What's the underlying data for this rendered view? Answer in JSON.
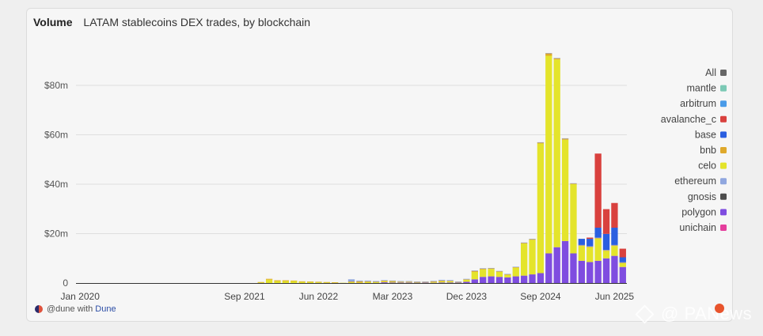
{
  "header": {
    "label": "Volume",
    "title": "LATAM stablecoins DEX trades, by blockchain"
  },
  "footer": {
    "credit": "@dune with",
    "brand": "Dune"
  },
  "watermark": {
    "text": "@ PANews"
  },
  "colors": {
    "mantle": "#7cc9b5",
    "arbitrum": "#4a9be8",
    "avalanche_c": "#d9413e",
    "base": "#2b5fe0",
    "bnb": "#dfa92c",
    "celo": "#e4e42b",
    "ethereum": "#90a7df",
    "gnosis": "#4d4d4d",
    "polygon": "#7f4de0",
    "unichain": "#e53e9d",
    "All": "#666666"
  },
  "chart_data": {
    "type": "bar",
    "stacked": true,
    "ylabel": "",
    "ylim": [
      0,
      100
    ],
    "yticks": [
      "0",
      "$20m",
      "$40m",
      "$60m",
      "$80m"
    ],
    "ytick_values": [
      0,
      20,
      40,
      60,
      80
    ],
    "xticks": [
      "Jan 2020",
      "Sep 2021",
      "Jun 2022",
      "Mar 2023",
      "Dec 2023",
      "Sep 2024",
      "Jun 2025"
    ],
    "xtick_indices": [
      0,
      20,
      29,
      38,
      47,
      56,
      65
    ],
    "legend_position": "right",
    "legend": [
      "All",
      "mantle",
      "arbitrum",
      "avalanche_c",
      "base",
      "bnb",
      "celo",
      "ethereum",
      "gnosis",
      "polygon",
      "unichain"
    ],
    "series": [
      {
        "name": "polygon",
        "values": [
          0,
          0,
          0,
          0,
          0,
          0,
          0,
          0,
          0,
          0,
          0,
          0,
          0,
          0,
          0,
          0,
          0,
          0,
          0,
          0,
          0,
          0,
          0,
          0,
          0,
          0,
          0,
          0,
          0,
          0,
          0,
          0,
          0,
          0,
          0,
          0,
          0,
          0.3,
          0.2,
          0.2,
          0.2,
          0.2,
          0.2,
          0.1,
          0.2,
          0.2,
          0.2,
          0.5,
          1.5,
          2.5,
          2.7,
          2.5,
          2.3,
          2.7,
          3,
          3.5,
          4,
          12,
          14.5,
          17,
          12,
          9,
          8.5,
          9,
          10,
          11,
          6.5
        ]
      },
      {
        "name": "celo",
        "values": [
          0,
          0,
          0,
          0,
          0,
          0,
          0,
          0,
          0,
          0,
          0,
          0,
          0,
          0,
          0,
          0,
          0,
          0,
          0,
          0,
          0,
          0,
          0.3,
          1.4,
          0.8,
          0.8,
          0.8,
          0.5,
          0.5,
          0.3,
          0.3,
          0.2,
          0.1,
          0.3,
          0.2,
          0.4,
          0.3,
          0.4,
          0.3,
          0.2,
          0.2,
          0.1,
          0.2,
          0.3,
          0.5,
          0.5,
          0.2,
          0.8,
          3,
          3,
          3,
          2,
          1,
          3.5,
          13,
          14,
          52.5,
          80,
          76,
          41,
          28,
          6,
          6,
          9,
          3,
          4,
          1.5
        ]
      },
      {
        "name": "bnb",
        "values": [
          0,
          0,
          0,
          0,
          0,
          0,
          0,
          0,
          0,
          0,
          0,
          0,
          0,
          0,
          0,
          0,
          0,
          0,
          0,
          0,
          0,
          0,
          0.1,
          0.3,
          0.3,
          0.3,
          0.2,
          0.2,
          0.1,
          0.2,
          0.1,
          0.1,
          0,
          0.3,
          0.5,
          0.3,
          0.2,
          0.3,
          0.3,
          0.2,
          0.2,
          0.2,
          0.1,
          0.3,
          0.3,
          0.2,
          0.1,
          0.2,
          0.4,
          0.4,
          0.3,
          0.3,
          0.3,
          0.3,
          0.3,
          0.3,
          0.4,
          1,
          0.5,
          0.5,
          0.3,
          0.3,
          0.3,
          0.3,
          0.3,
          0.3,
          0.3
        ]
      },
      {
        "name": "ethereum",
        "values": [
          0,
          0,
          0,
          0,
          0,
          0,
          0,
          0,
          0,
          0,
          0,
          0,
          0,
          0,
          0,
          0,
          0,
          0,
          0,
          0,
          0,
          0,
          0,
          0,
          0,
          0,
          0,
          0,
          0,
          0,
          0,
          0,
          0,
          0.9,
          0.3,
          0.3,
          0.3,
          0.2,
          0.2,
          0.2,
          0.2,
          0.1,
          0.1,
          0.2,
          0.3,
          0.3,
          0.1,
          0.2,
          0.2,
          0.1,
          0.1,
          0.1,
          0.1,
          0.1,
          0.1,
          0.1,
          0.1,
          0.1,
          0.1,
          0.1,
          0.1,
          0.1,
          0.1,
          0.1,
          0.1,
          0.1,
          0.1
        ]
      },
      {
        "name": "base",
        "values": [
          0,
          0,
          0,
          0,
          0,
          0,
          0,
          0,
          0,
          0,
          0,
          0,
          0,
          0,
          0,
          0,
          0,
          0,
          0,
          0,
          0,
          0,
          0,
          0,
          0,
          0,
          0,
          0,
          0,
          0,
          0,
          0,
          0,
          0,
          0,
          0,
          0,
          0,
          0,
          0,
          0,
          0,
          0,
          0,
          0,
          0,
          0,
          0,
          0,
          0,
          0,
          0,
          0,
          0,
          0,
          0,
          0,
          0,
          0,
          0,
          0,
          2.5,
          3,
          4,
          6.5,
          7,
          2
        ]
      },
      {
        "name": "avalanche_c",
        "values": [
          0,
          0,
          0,
          0,
          0,
          0,
          0,
          0,
          0,
          0,
          0,
          0,
          0,
          0,
          0,
          0,
          0,
          0,
          0,
          0,
          0,
          0,
          0,
          0,
          0,
          0,
          0,
          0,
          0,
          0,
          0,
          0,
          0,
          0,
          0,
          0,
          0,
          0,
          0,
          0,
          0,
          0,
          0,
          0,
          0,
          0,
          0,
          0,
          0,
          0,
          0,
          0,
          0,
          0,
          0,
          0,
          0,
          0,
          0,
          0,
          0,
          0,
          0.5,
          30,
          10,
          10,
          3.5
        ]
      }
    ]
  }
}
